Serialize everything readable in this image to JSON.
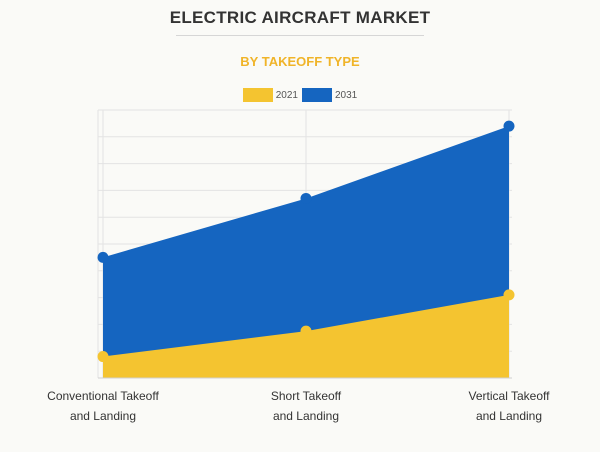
{
  "header": {
    "title": "ELECTRIC AIRCRAFT MARKET",
    "subtitle": "BY TAKEOFF TYPE"
  },
  "colors": {
    "series_2021": "#f4c430",
    "series_2031": "#1565c0",
    "subtitle": "#f0b429"
  },
  "chart_data": {
    "type": "area",
    "title": "ELECTRIC AIRCRAFT MARKET",
    "subtitle": "BY TAKEOFF TYPE",
    "categories": [
      "Conventional Takeoff and Landing",
      "Short Takeoff and Landing",
      "Vertical Takeoff and Landing"
    ],
    "category_lines": [
      [
        "Conventional Takeoff",
        "and Landing"
      ],
      [
        "Short Takeoff",
        "and Landing"
      ],
      [
        "Vertical Takeoff",
        "and Landing"
      ]
    ],
    "series": [
      {
        "name": "2021",
        "values": [
          0.8,
          1.75,
          3.1
        ]
      },
      {
        "name": "2031",
        "values": [
          4.5,
          6.7,
          9.4
        ]
      }
    ],
    "ylim": [
      0,
      10
    ],
    "grid": true,
    "legend_position": "top-center",
    "y_axis_labels_shown": false
  }
}
